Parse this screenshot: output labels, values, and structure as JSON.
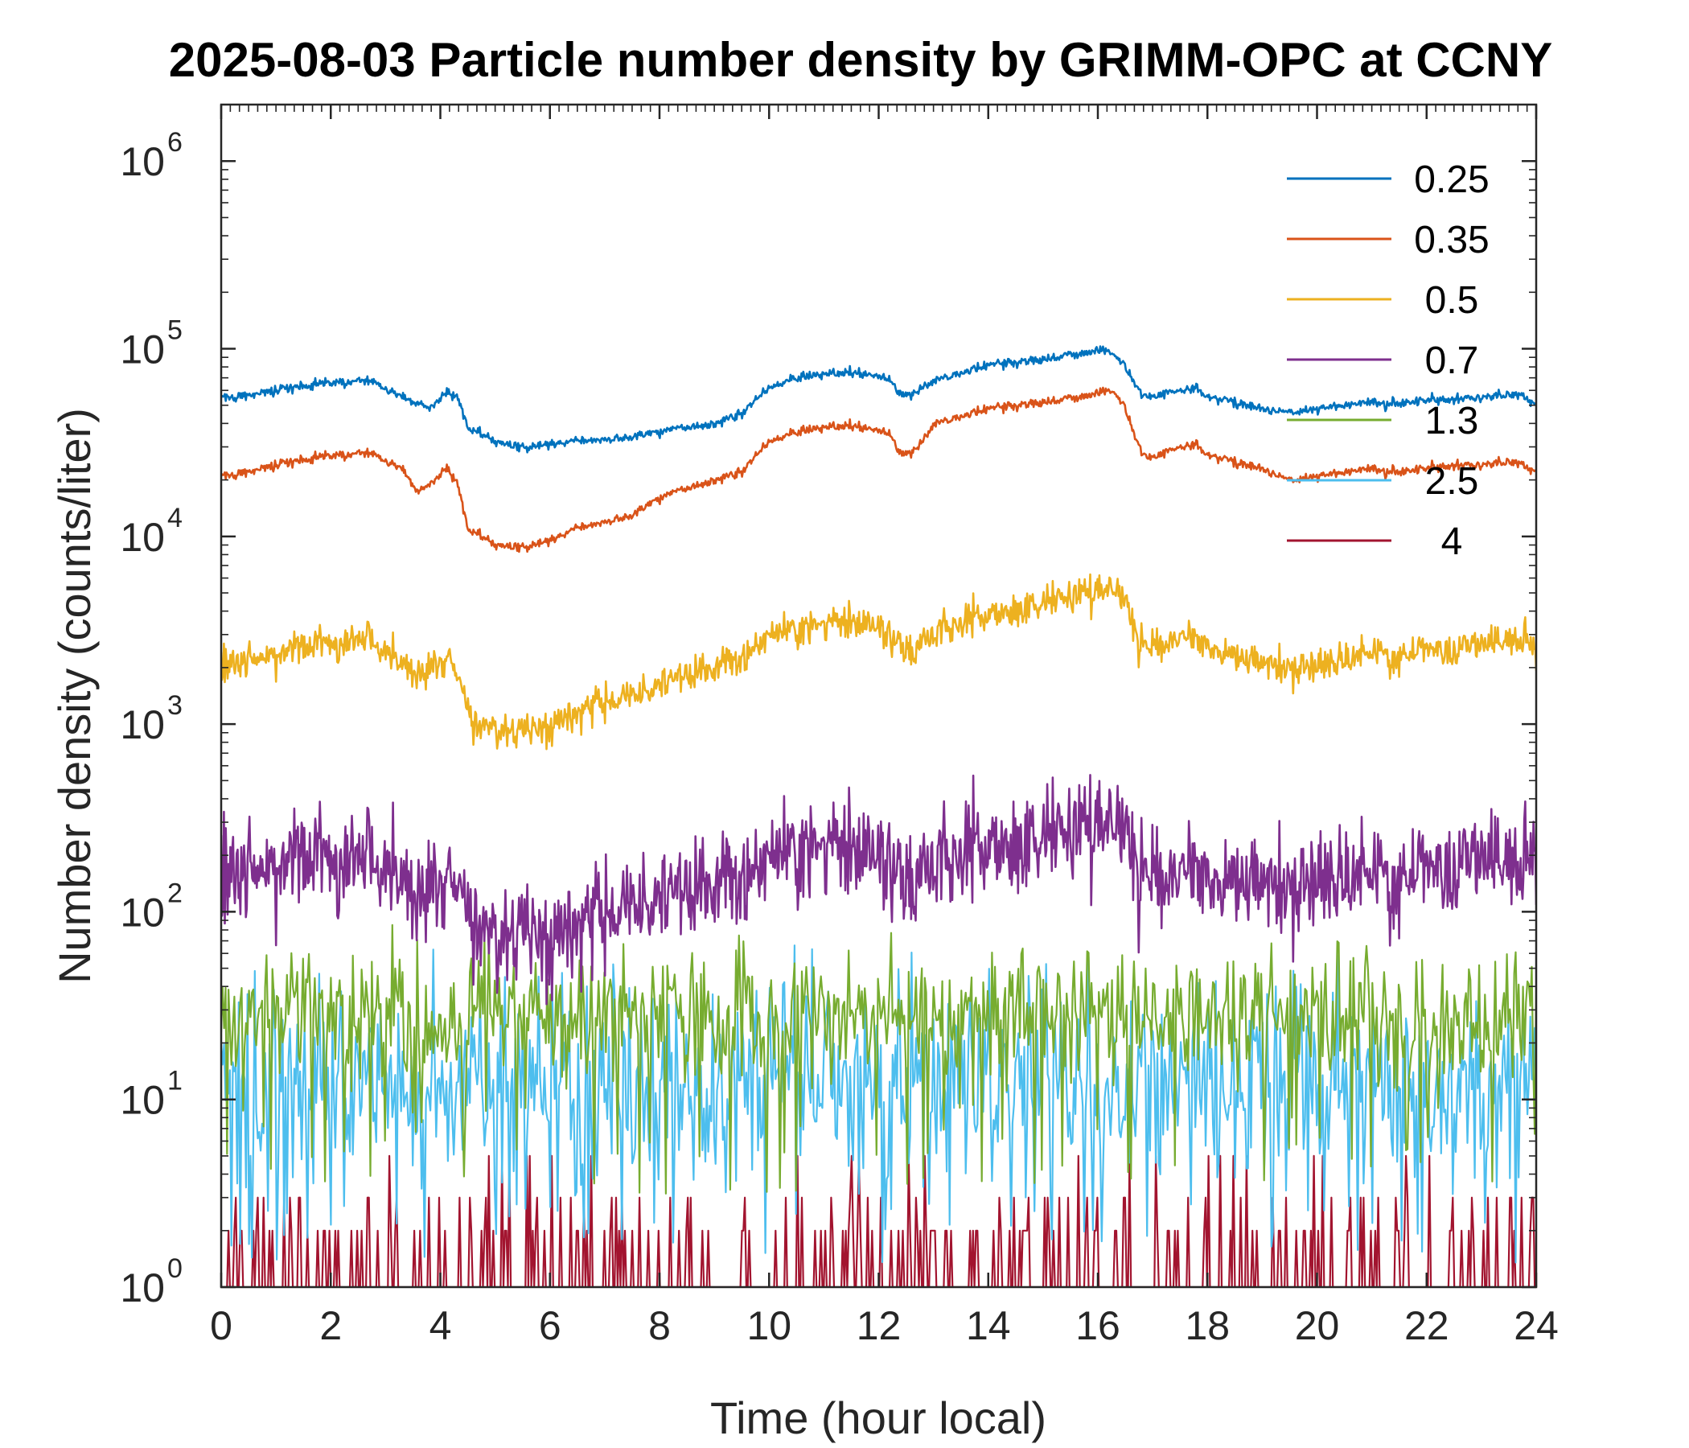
{
  "chart_data": {
    "type": "line",
    "title": "2025-08-03 Particle number density by GRIMM-OPC at CCNY",
    "xlabel": "Time (hour local)",
    "ylabel": "Number density (counts/liter)",
    "xlim": [
      0,
      24
    ],
    "ylim": [
      1,
      2000000
    ],
    "yscale": "log",
    "x_ticks": [
      "0",
      "2",
      "4",
      "6",
      "8",
      "10",
      "12",
      "14",
      "16",
      "18",
      "20",
      "22",
      "24"
    ],
    "y_ticks": [
      {
        "base": "10",
        "exp": "0"
      },
      {
        "base": "10",
        "exp": "1"
      },
      {
        "base": "10",
        "exp": "2"
      },
      {
        "base": "10",
        "exp": "3"
      },
      {
        "base": "10",
        "exp": "4"
      },
      {
        "base": "10",
        "exp": "5"
      },
      {
        "base": "10",
        "exp": "6"
      }
    ],
    "legend_position": "top-right",
    "series": [
      {
        "name": "0.25",
        "color": "#0072BD",
        "x": [
          0,
          1,
          2,
          2.7,
          3.5,
          3.8,
          4.1,
          4.3,
          4.5,
          5,
          5.5,
          6,
          6.5,
          7,
          7.5,
          8,
          8.5,
          9,
          9.5,
          10,
          10.5,
          11,
          11.5,
          12,
          12.2,
          12.4,
          12.6,
          12.8,
          13,
          13.5,
          14,
          14.5,
          15,
          15.5,
          16,
          16.3,
          16.5,
          16.7,
          16.9,
          17.2,
          17.5,
          17.8,
          18,
          18.5,
          19,
          19.5,
          20,
          20.5,
          21,
          21.5,
          22,
          22.5,
          23,
          23.5,
          23.8,
          24
        ],
        "y": [
          55000,
          60000,
          66000,
          68000,
          52000,
          48000,
          58000,
          57000,
          38000,
          32000,
          30000,
          31000,
          32000,
          33000,
          34000,
          36000,
          38000,
          40000,
          45000,
          62000,
          70000,
          73000,
          75000,
          72000,
          68000,
          56000,
          57000,
          62000,
          68000,
          75000,
          82000,
          85000,
          88000,
          92000,
          98000,
          95000,
          80000,
          62000,
          55000,
          58000,
          60000,
          62000,
          55000,
          52000,
          48000,
          46000,
          48000,
          50000,
          52000,
          51000,
          53000,
          54000,
          55000,
          57000,
          56000,
          50000
        ]
      },
      {
        "name": "0.35",
        "color": "#D95319",
        "x": [
          0,
          1,
          2,
          2.7,
          3.3,
          3.6,
          3.9,
          4.1,
          4.3,
          4.5,
          5,
          5.5,
          6,
          6.5,
          7,
          7.5,
          8,
          8.5,
          9,
          9.5,
          10,
          10.5,
          11,
          11.5,
          12,
          12.2,
          12.4,
          12.6,
          12.8,
          13,
          13.5,
          14,
          14.5,
          15,
          15.5,
          16,
          16.3,
          16.5,
          16.7,
          16.9,
          17.2,
          17.5,
          17.8,
          18,
          18.5,
          19,
          19.5,
          20,
          20.5,
          21,
          21.5,
          22,
          22.5,
          23,
          23.5,
          23.8,
          24
        ],
        "y": [
          21000,
          24000,
          27000,
          28000,
          23000,
          17000,
          20000,
          23000,
          20000,
          11000,
          9000,
          8800,
          9500,
          11000,
          12000,
          13000,
          16000,
          18000,
          20000,
          22000,
          32000,
          36000,
          38000,
          39000,
          37000,
          35000,
          27000,
          28000,
          32000,
          40000,
          44000,
          48000,
          50000,
          52000,
          54000,
          58000,
          60000,
          48000,
          32000,
          26000,
          28000,
          30000,
          31000,
          27000,
          25000,
          23000,
          20000,
          21000,
          22000,
          23000,
          22000,
          23000,
          24000,
          24000,
          25000,
          24000,
          22000
        ]
      },
      {
        "name": "0.5",
        "color": "#EDB120",
        "x": [
          0,
          1,
          2,
          2.7,
          3.3,
          3.7,
          4,
          4.2,
          4.4,
          4.6,
          5,
          5.5,
          6,
          6.5,
          7,
          7.5,
          8,
          8.5,
          9,
          9.5,
          10,
          10.5,
          11,
          11.5,
          12,
          12.3,
          12.6,
          12.9,
          13.2,
          13.5,
          14,
          14.5,
          15,
          15.5,
          16,
          16.3,
          16.5,
          16.7,
          16.9,
          17.2,
          17.5,
          17.8,
          18,
          18.5,
          19,
          19.5,
          20,
          20.5,
          21,
          21.5,
          22,
          22.5,
          23,
          23.5,
          23.8,
          24
        ],
        "y": [
          2100,
          2400,
          2700,
          2800,
          2100,
          1800,
          2200,
          2300,
          1500,
          1000,
          950,
          880,
          1000,
          1150,
          1300,
          1400,
          1600,
          1800,
          2000,
          2300,
          3000,
          3200,
          3400,
          3500,
          3300,
          2800,
          2400,
          2900,
          3300,
          3500,
          3800,
          4100,
          4400,
          4800,
          5200,
          5400,
          4600,
          3000,
          2500,
          2700,
          2900,
          2800,
          2600,
          2300,
          2100,
          2000,
          2000,
          2200,
          2400,
          2300,
          2500,
          2500,
          2600,
          2800,
          2900,
          2200
        ]
      },
      {
        "name": "0.7",
        "color": "#7E2F8E",
        "x": [
          0,
          1,
          2,
          2.7,
          3.3,
          3.7,
          4,
          4.2,
          4.4,
          4.6,
          5,
          5.5,
          6,
          6.5,
          7,
          7.5,
          8,
          8.5,
          9,
          9.5,
          10,
          10.5,
          11,
          11.5,
          12,
          12.3,
          12.6,
          12.9,
          13.2,
          13.5,
          14,
          14.5,
          15,
          15.5,
          16,
          16.3,
          16.5,
          16.7,
          16.9,
          17.2,
          17.5,
          17.8,
          18,
          18.5,
          19,
          19.5,
          20,
          20.5,
          21,
          21.5,
          22,
          22.5,
          23,
          23.5,
          23.8,
          24
        ],
        "y": [
          170,
          185,
          190,
          185,
          150,
          115,
          150,
          170,
          120,
          85,
          75,
          72,
          75,
          85,
          95,
          105,
          115,
          125,
          140,
          160,
          200,
          210,
          220,
          215,
          200,
          170,
          140,
          175,
          200,
          210,
          220,
          235,
          250,
          270,
          300,
          320,
          280,
          180,
          150,
          155,
          160,
          160,
          150,
          145,
          140,
          135,
          140,
          150,
          160,
          150,
          170,
          175,
          180,
          185,
          190,
          160
        ]
      },
      {
        "name": "1.3",
        "color": "#77AC30",
        "base": 28,
        "spread": 0.5,
        "seed": 7
      },
      {
        "name": "2.5",
        "color": "#4DBEEE",
        "base": 12,
        "spread": 0.75,
        "seed": 13
      },
      {
        "name": "4",
        "color": "#A2142F",
        "base": 1.6,
        "spread": 1.0,
        "seed": 29,
        "sparse": true
      }
    ]
  }
}
